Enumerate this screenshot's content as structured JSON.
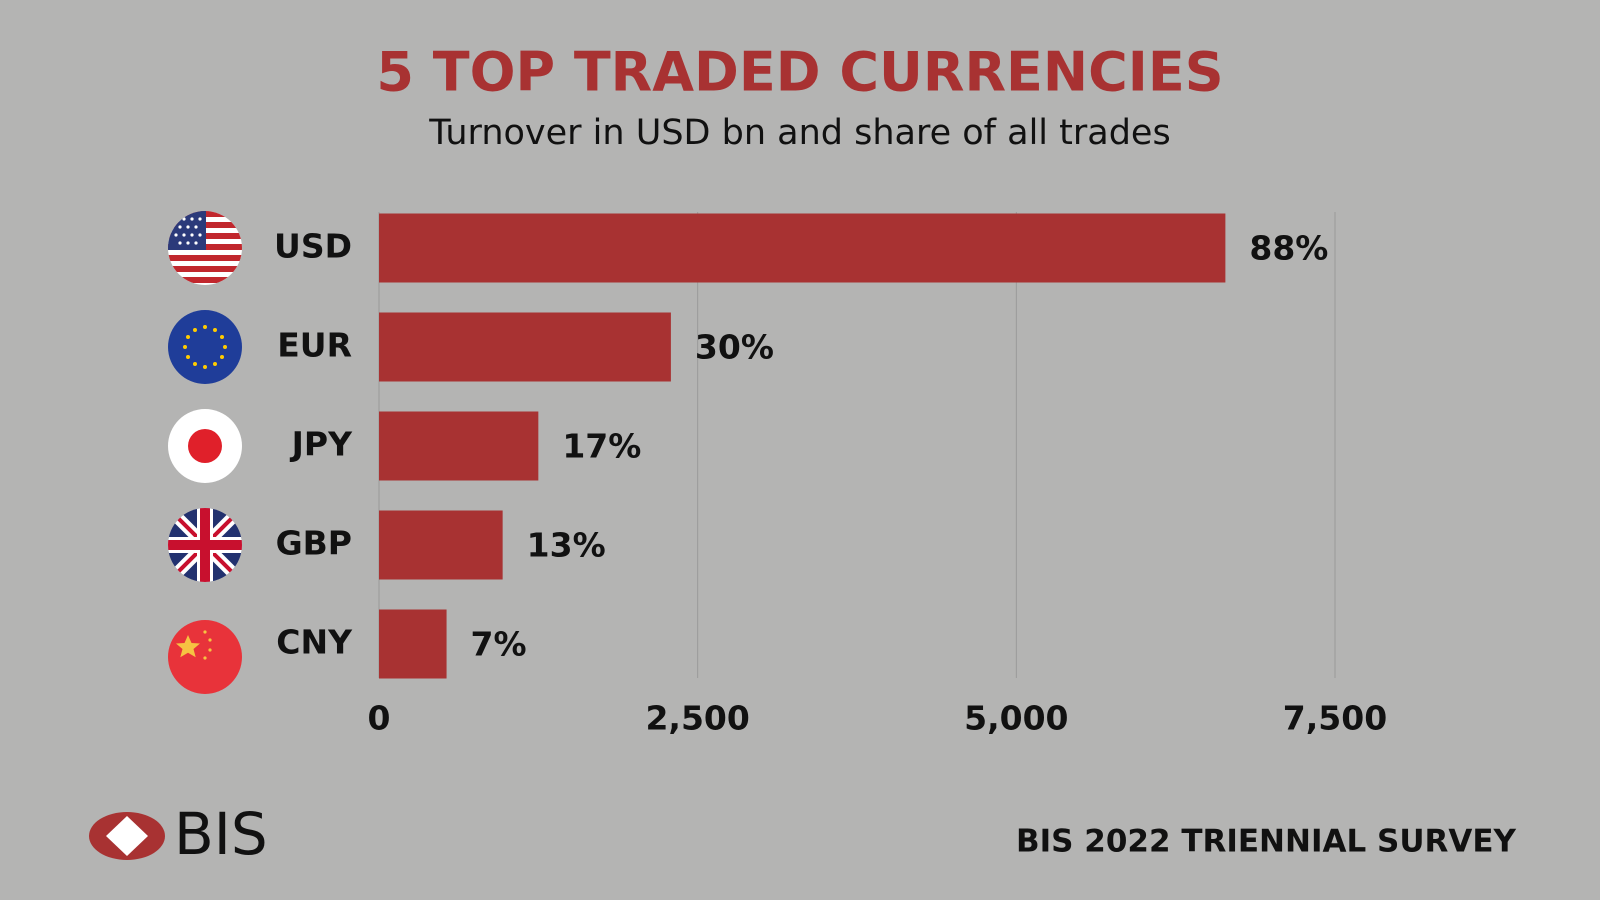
{
  "chart_data": {
    "type": "bar",
    "orientation": "horizontal",
    "title": "5 TOP TRADED CURRENCIES",
    "subtitle": "Turnover in USD bn and share of all trades",
    "categories": [
      "USD",
      "EUR",
      "JPY",
      "GBP",
      "CNY"
    ],
    "values": [
      6640,
      2290,
      1250,
      970,
      530
    ],
    "share_labels": [
      "88%",
      "30%",
      "17%",
      "13%",
      "7%"
    ],
    "color": "#a83232",
    "xlim": [
      0,
      7500
    ],
    "xticks": [
      0,
      {
        "value": 2500,
        "label": "2,500"
      },
      {
        "value": 5000,
        "label": "5,000"
      },
      {
        "value": 7500,
        "label": "7,500"
      }
    ],
    "grid": true,
    "logo": "BIS",
    "source": "BIS 2022 TRIENNIAL SURVEY"
  }
}
